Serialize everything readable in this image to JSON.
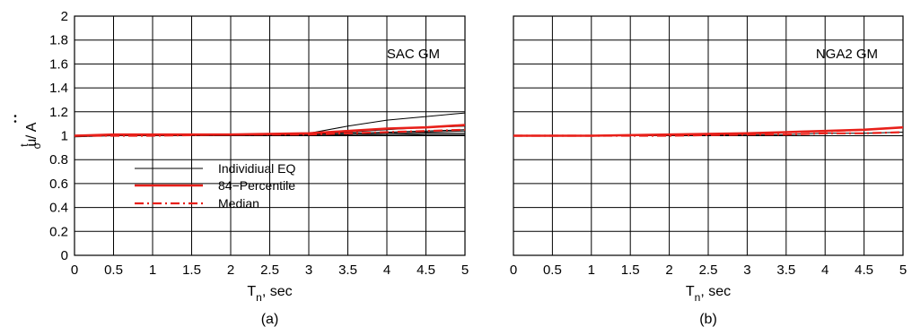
{
  "chart_data": [
    {
      "type": "line",
      "panel_caption": "(a)",
      "annotation": "SAC GM",
      "xlabel": {
        "main": "T",
        "sub": "n",
        "rest": ", sec"
      },
      "ylabel": {
        "main": "u",
        "sup": "t",
        "sub": "o",
        "rest": " / A"
      },
      "xlim": [
        0,
        5
      ],
      "ylim": [
        0,
        2
      ],
      "xticks": [
        "0",
        "0.5",
        "1",
        "1.5",
        "2",
        "2.5",
        "3",
        "3.5",
        "4",
        "4.5",
        "5"
      ],
      "yticks": [
        "0",
        "0.2",
        "0.4",
        "0.6",
        "0.8",
        "1",
        "1.2",
        "1.4",
        "1.6",
        "1.8",
        "2"
      ],
      "grid": true,
      "legend": {
        "position": "lower-left",
        "entries": [
          {
            "label": "Individiual EQ",
            "color": "#000000",
            "style": "thin"
          },
          {
            "label": "84−Percentile",
            "color": "#e8201a",
            "style": "thick"
          },
          {
            "label": "Median",
            "color": "#e8201a",
            "style": "dashdot"
          }
        ]
      },
      "series": [
        {
          "name": "Individiual EQ",
          "style": "thin",
          "color": "#000000",
          "x": [
            0,
            0.5,
            1,
            2,
            3,
            3.5,
            4,
            4.5,
            5
          ],
          "y": [
            1.0,
            1.0,
            1.0,
            1.01,
            1.02,
            1.08,
            1.13,
            1.16,
            1.19
          ]
        },
        {
          "name": "",
          "style": "thin",
          "color": "#000000",
          "x": [
            0,
            0.5,
            1,
            2,
            3,
            3.5,
            4,
            4.5,
            5
          ],
          "y": [
            1.0,
            1.0,
            1.0,
            1.01,
            1.01,
            1.03,
            1.05,
            1.07,
            1.08
          ]
        },
        {
          "name": "",
          "style": "thin",
          "color": "#000000",
          "x": [
            0,
            0.5,
            1,
            2,
            3,
            3.5,
            4,
            4.5,
            5
          ],
          "y": [
            0.99,
            1.0,
            1.0,
            1.0,
            1.01,
            1.02,
            1.03,
            1.04,
            1.05
          ]
        },
        {
          "name": "",
          "style": "thin",
          "color": "#000000",
          "x": [
            0,
            0.5,
            1,
            2,
            3,
            3.5,
            4,
            4.5,
            5
          ],
          "y": [
            1.0,
            1.0,
            1.0,
            1.0,
            1.0,
            1.01,
            1.02,
            1.03,
            1.04
          ]
        },
        {
          "name": "",
          "style": "thin",
          "color": "#000000",
          "x": [
            0,
            0.5,
            1,
            2,
            3,
            3.5,
            4,
            4.5,
            5
          ],
          "y": [
            1.0,
            1.0,
            1.0,
            1.0,
            1.0,
            1.01,
            1.01,
            1.02,
            1.02
          ]
        },
        {
          "name": "",
          "style": "thin",
          "color": "#000000",
          "x": [
            0,
            0.5,
            1,
            2,
            3,
            3.5,
            4,
            4.5,
            5
          ],
          "y": [
            1.0,
            1.0,
            1.0,
            1.0,
            1.0,
            1.0,
            1.0,
            1.01,
            1.01
          ]
        },
        {
          "name": "84−Percentile",
          "style": "thick",
          "color": "#e8201a",
          "x": [
            0,
            0.5,
            1,
            2,
            3,
            3.5,
            4,
            4.5,
            5
          ],
          "y": [
            1.0,
            1.01,
            1.01,
            1.01,
            1.02,
            1.04,
            1.06,
            1.07,
            1.09
          ]
        },
        {
          "name": "Median",
          "style": "dashdot",
          "color": "#e8201a",
          "x": [
            0,
            0.5,
            1,
            2,
            3,
            3.5,
            4,
            4.5,
            5
          ],
          "y": [
            1.0,
            1.0,
            1.0,
            1.01,
            1.01,
            1.02,
            1.03,
            1.04,
            1.05
          ]
        }
      ]
    },
    {
      "type": "line",
      "panel_caption": "(b)",
      "annotation": "NGA2 GM",
      "xlabel": {
        "main": "T",
        "sub": "n",
        "rest": ", sec"
      },
      "xlim": [
        0,
        5
      ],
      "ylim": [
        0,
        2
      ],
      "xticks": [
        "0",
        "0.5",
        "1",
        "1.5",
        "2",
        "2.5",
        "3",
        "3.5",
        "4",
        "4.5",
        "5"
      ],
      "grid": true,
      "series": [
        {
          "name": "",
          "style": "thin",
          "color": "#000000",
          "x": [
            0,
            1,
            2,
            3,
            3.5,
            4,
            4.5,
            5
          ],
          "y": [
            1.0,
            1.0,
            1.0,
            1.01,
            1.01,
            1.02,
            1.02,
            1.03
          ]
        },
        {
          "name": "84−Percentile",
          "style": "thick",
          "color": "#e8201a",
          "x": [
            0,
            0.5,
            1,
            2,
            3,
            3.5,
            4,
            4.5,
            5
          ],
          "y": [
            1.0,
            1.0,
            1.0,
            1.01,
            1.02,
            1.03,
            1.04,
            1.05,
            1.07
          ]
        },
        {
          "name": "Median",
          "style": "dashdot",
          "color": "#e8201a",
          "x": [
            0,
            0.5,
            1,
            2,
            3,
            3.5,
            4,
            4.5,
            5
          ],
          "y": [
            1.0,
            1.0,
            1.0,
            1.0,
            1.01,
            1.01,
            1.02,
            1.02,
            1.03
          ]
        }
      ]
    }
  ]
}
